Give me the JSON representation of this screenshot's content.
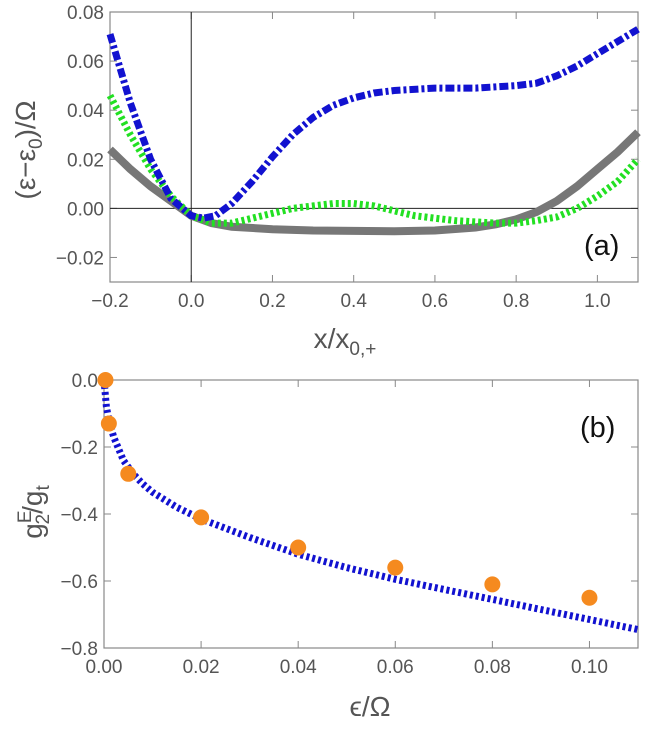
{
  "chart_data": [
    {
      "type": "line",
      "panel_label": "(a)",
      "xlabel": "x/x",
      "xlabel_sub": "0,+",
      "ylabel": "(ε−ε",
      "ylabel_sub": "0",
      "ylabel_tail": ")/Ω",
      "xlim": [
        -0.2,
        1.1
      ],
      "ylim": [
        -0.03,
        0.08
      ],
      "xticks": [
        -0.2,
        0.0,
        0.2,
        0.4,
        0.6,
        0.8,
        1.0
      ],
      "xtick_labels": [
        "−0.2",
        "0.0",
        "0.2",
        "0.4",
        "0.6",
        "0.8",
        "1.0"
      ],
      "yticks": [
        -0.02,
        0.0,
        0.02,
        0.04,
        0.06,
        0.08
      ],
      "ytick_labels": [
        "−0.02",
        "0.00",
        "0.02",
        "0.04",
        "0.06",
        "0.08"
      ],
      "series": [
        {
          "name": "gray-solid",
          "color": "#777777",
          "style": "solid",
          "x": [
            -0.2,
            -0.15,
            -0.1,
            -0.05,
            0.0,
            0.05,
            0.1,
            0.2,
            0.3,
            0.4,
            0.5,
            0.6,
            0.7,
            0.75,
            0.8,
            0.85,
            0.9,
            0.95,
            1.0,
            1.05,
            1.1
          ],
          "y": [
            0.024,
            0.016,
            0.009,
            0.003,
            -0.003,
            -0.006,
            -0.0075,
            -0.0085,
            -0.009,
            -0.0092,
            -0.0093,
            -0.009,
            -0.0078,
            -0.0065,
            -0.0045,
            -0.0015,
            0.003,
            0.009,
            0.016,
            0.023,
            0.031
          ]
        },
        {
          "name": "green-dotted",
          "color": "#22e022",
          "style": "dotted",
          "x": [
            -0.2,
            -0.15,
            -0.1,
            -0.05,
            0.0,
            0.05,
            0.1,
            0.15,
            0.2,
            0.25,
            0.3,
            0.35,
            0.4,
            0.45,
            0.5,
            0.55,
            0.6,
            0.65,
            0.7,
            0.75,
            0.8,
            0.85,
            0.9,
            0.95,
            1.0,
            1.05,
            1.1
          ],
          "y": [
            0.046,
            0.03,
            0.016,
            0.005,
            -0.003,
            -0.006,
            -0.006,
            -0.004,
            -0.002,
            0.0,
            0.001,
            0.002,
            0.002,
            0.001,
            -0.001,
            -0.003,
            -0.004,
            -0.005,
            -0.0055,
            -0.006,
            -0.006,
            -0.005,
            -0.0035,
            0.0,
            0.005,
            0.011,
            0.02
          ]
        },
        {
          "name": "blue-dashdot",
          "color": "#1212d0",
          "style": "dashdot",
          "x": [
            -0.2,
            -0.15,
            -0.1,
            -0.05,
            0.0,
            0.03,
            0.06,
            0.1,
            0.15,
            0.2,
            0.25,
            0.3,
            0.35,
            0.4,
            0.45,
            0.5,
            0.6,
            0.7,
            0.8,
            0.85,
            0.9,
            0.95,
            1.0,
            1.05,
            1.1
          ],
          "y": [
            0.071,
            0.043,
            0.02,
            0.004,
            -0.003,
            -0.004,
            -0.003,
            0.002,
            0.011,
            0.021,
            0.03,
            0.037,
            0.042,
            0.045,
            0.047,
            0.048,
            0.049,
            0.049,
            0.05,
            0.051,
            0.054,
            0.058,
            0.063,
            0.068,
            0.073
          ]
        }
      ]
    },
    {
      "type": "scatter+line",
      "panel_label": "(b)",
      "xlabel": "ϵ/Ω",
      "ylabel": "g",
      "ylabel_sub": "2",
      "ylabel_sup": "E",
      "ylabel_tail": "/g",
      "ylabel_tail_sub": "t",
      "xlim": [
        0.0,
        0.11
      ],
      "ylim": [
        -0.8,
        0.0
      ],
      "xticks": [
        0.0,
        0.02,
        0.04,
        0.06,
        0.08,
        0.1
      ],
      "xtick_labels": [
        "0.00",
        "0.02",
        "0.04",
        "0.06",
        "0.08",
        "0.10"
      ],
      "yticks": [
        -0.8,
        -0.6,
        -0.4,
        -0.2,
        0.0
      ],
      "ytick_labels": [
        "−0.8",
        "−0.6",
        "−0.4",
        "−0.2",
        "0.0"
      ],
      "points": {
        "color": "#f58a1f",
        "x": [
          0.0003,
          0.001,
          0.005,
          0.02,
          0.04,
          0.06,
          0.08,
          0.1
        ],
        "y": [
          0.0,
          -0.13,
          -0.28,
          -0.41,
          -0.5,
          -0.56,
          -0.61,
          -0.65
        ]
      },
      "line": {
        "color": "#1212d0",
        "style": "dotted",
        "x": [
          0.0,
          0.0005,
          0.001,
          0.002,
          0.004,
          0.006,
          0.008,
          0.01,
          0.015,
          0.02,
          0.03,
          0.04,
          0.05,
          0.06,
          0.07,
          0.08,
          0.09,
          0.1,
          0.11
        ],
        "y": [
          0.0,
          -0.08,
          -0.12,
          -0.17,
          -0.24,
          -0.28,
          -0.31,
          -0.335,
          -0.38,
          -0.415,
          -0.47,
          -0.52,
          -0.56,
          -0.595,
          -0.625,
          -0.655,
          -0.685,
          -0.715,
          -0.745
        ]
      }
    }
  ]
}
